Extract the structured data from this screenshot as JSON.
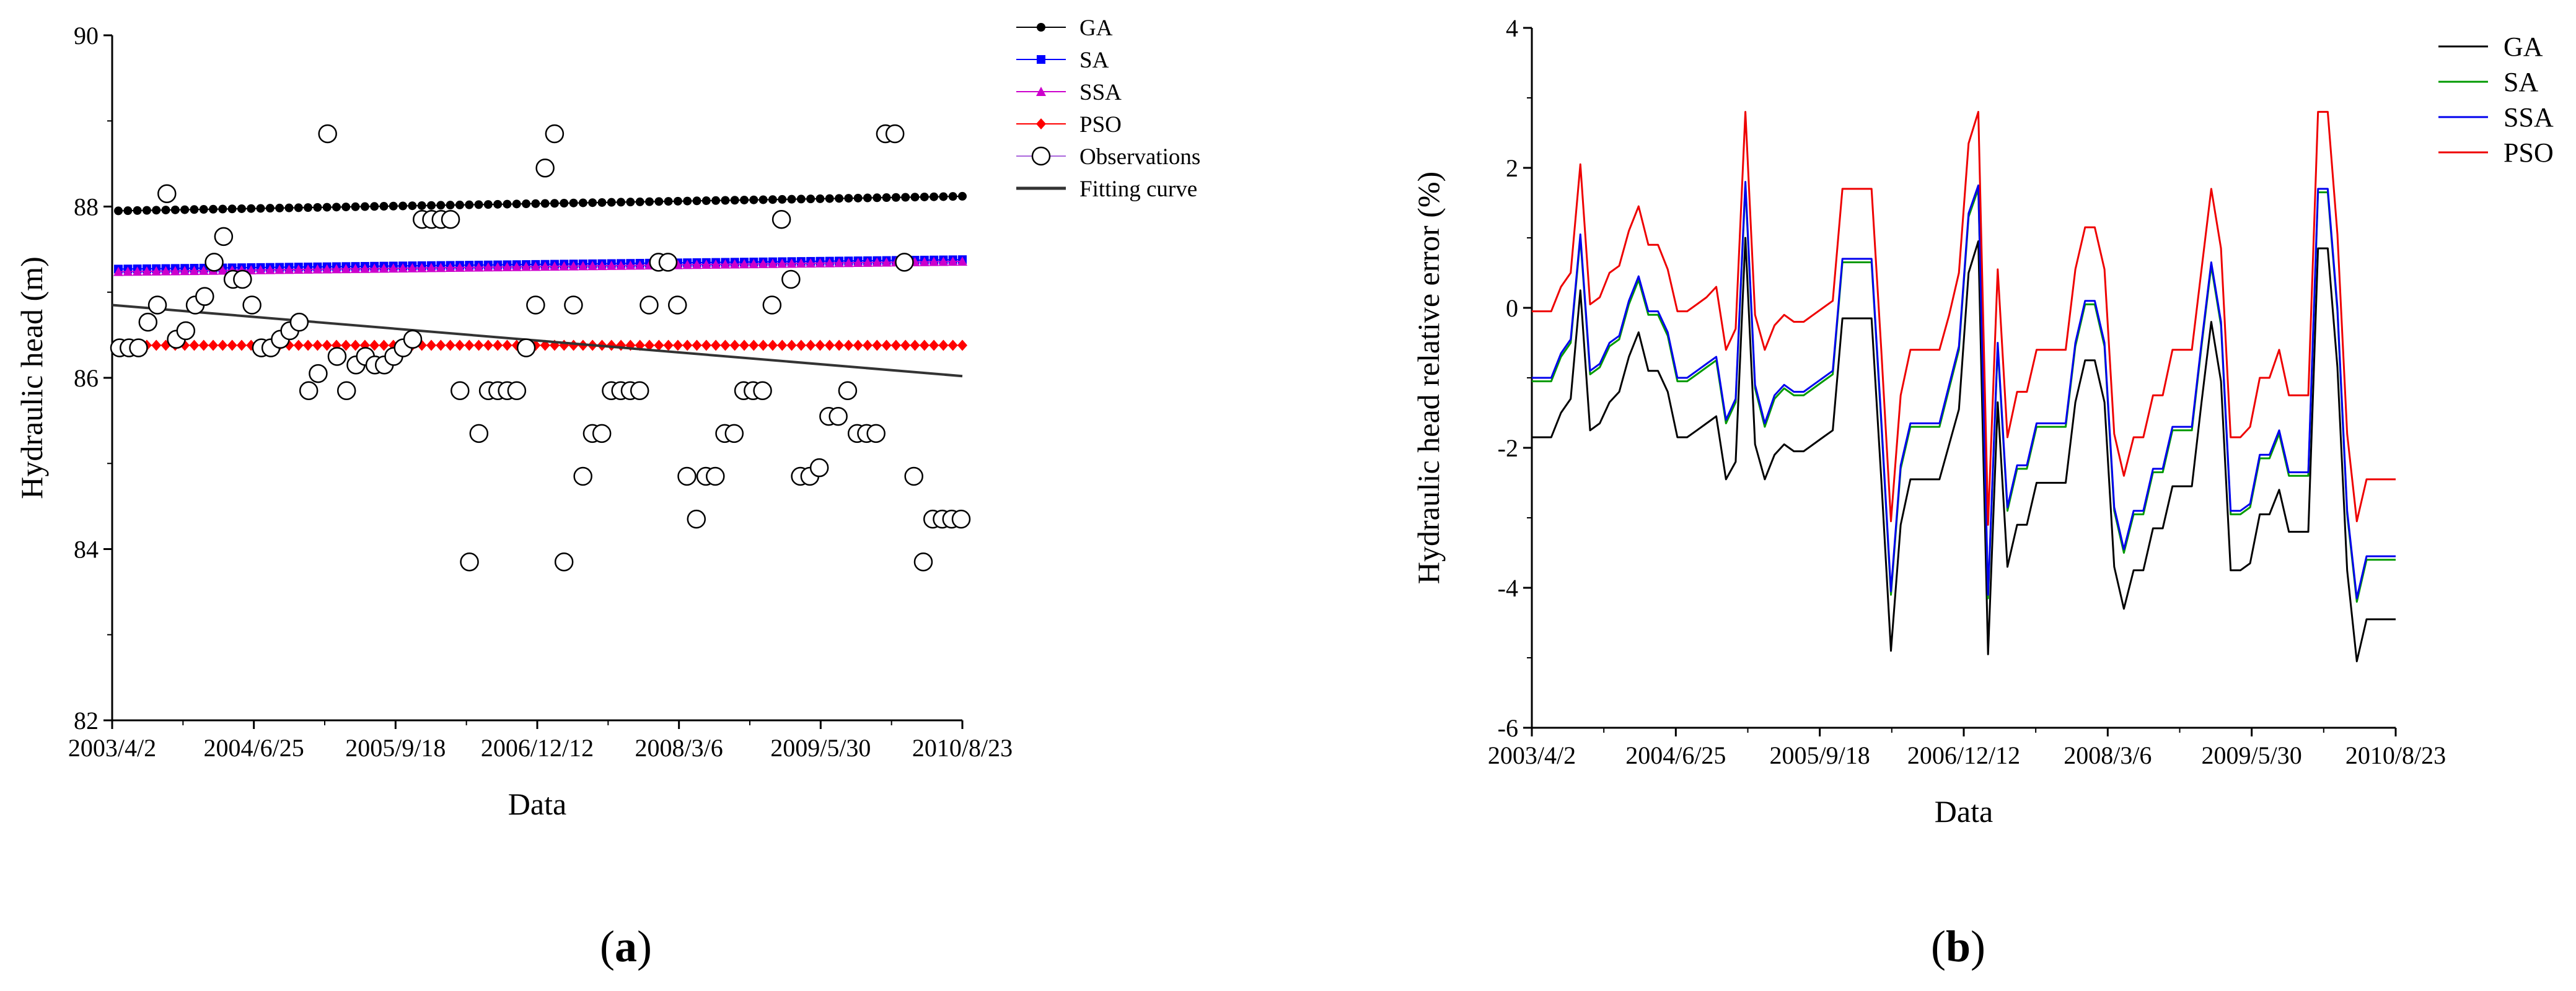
{
  "chart_data": [
    {
      "type": "scatter",
      "panel_label": {
        "open": "(",
        "letter": "a",
        "close": ")"
      },
      "xlabel": "Data",
      "ylabel": "Hydraulic head (m)",
      "ylim": [
        82,
        90
      ],
      "yticks": [
        82,
        84,
        86,
        88,
        90
      ],
      "xticks": [
        "2003/4/2",
        "2004/6/25",
        "2005/9/18",
        "2006/12/12",
        "2008/3/6",
        "2009/5/30",
        "2010/8/23"
      ],
      "n_points": 90,
      "legend": [
        "GA",
        "SA",
        "SSA",
        "PSO",
        "Observations",
        "Fitting curve"
      ],
      "series": [
        {
          "name": "GA",
          "color": "#000000",
          "marker": "circle",
          "start": 87.95,
          "end": 88.12
        },
        {
          "name": "SA",
          "color": "#0000ff",
          "marker": "square",
          "start": 87.27,
          "end": 87.38
        },
        {
          "name": "SSA",
          "color": "#cc00cc",
          "marker": "triangle",
          "start": 87.24,
          "end": 87.36
        },
        {
          "name": "PSO",
          "color": "#ff0000",
          "marker": "diamond",
          "start": 86.38,
          "end": 86.38
        },
        {
          "name": "Fitting curve",
          "color": "#333333",
          "marker": "none",
          "start": 86.85,
          "end": 86.02
        }
      ],
      "observations": [
        86.35,
        86.35,
        86.35,
        86.65,
        86.85,
        88.15,
        86.45,
        86.55,
        86.85,
        86.95,
        87.35,
        87.65,
        87.15,
        87.15,
        86.85,
        86.35,
        86.35,
        86.45,
        86.55,
        86.65,
        85.85,
        86.05,
        88.85,
        86.25,
        85.85,
        86.15,
        86.25,
        86.15,
        86.15,
        86.25,
        86.35,
        86.45,
        87.85,
        87.85,
        87.85,
        87.85,
        85.85,
        83.85,
        85.35,
        85.85,
        85.85,
        85.85,
        85.85,
        86.35,
        86.85,
        88.45,
        88.85,
        83.85,
        86.85,
        84.85,
        85.35,
        85.35,
        85.85,
        85.85,
        85.85,
        85.85,
        86.85,
        87.35,
        87.35,
        86.85,
        84.85,
        84.35,
        84.85,
        84.85,
        85.35,
        85.35,
        85.85,
        85.85,
        85.85,
        86.85,
        87.85,
        87.15,
        84.85,
        84.85,
        84.95,
        85.55,
        85.55,
        85.85,
        85.35,
        85.35,
        85.35,
        88.85,
        88.85,
        87.35,
        84.85,
        83.85,
        84.35,
        84.35,
        84.35,
        84.35
      ]
    },
    {
      "type": "line",
      "panel_label": {
        "open": "(",
        "letter": "b",
        "close": ")"
      },
      "xlabel": "Data",
      "ylabel": "Hydraulic head relative error (%)",
      "ylim": [
        -6,
        4
      ],
      "yticks": [
        -6,
        -4,
        -2,
        0,
        2,
        4
      ],
      "xticks": [
        "2003/4/2",
        "2004/6/25",
        "2005/9/18",
        "2006/12/12",
        "2008/3/6",
        "2009/5/30",
        "2010/8/23"
      ],
      "legend": [
        "GA",
        "SA",
        "SSA",
        "PSO"
      ],
      "series": [
        {
          "name": "GA",
          "color": "#000000",
          "values": [
            -1.85,
            -1.85,
            -1.85,
            -1.5,
            -1.3,
            0.25,
            -1.75,
            -1.65,
            -1.35,
            -1.2,
            -0.7,
            -0.35,
            -0.9,
            -0.9,
            -1.2,
            -1.85,
            -1.85,
            -1.75,
            -1.65,
            -1.55,
            -2.45,
            -2.2,
            1.0,
            -1.95,
            -2.45,
            -2.1,
            -1.95,
            -2.05,
            -2.05,
            -1.95,
            -1.85,
            -1.75,
            -0.15,
            -0.15,
            -0.15,
            -0.15,
            -2.45,
            -4.9,
            -3.1,
            -2.45,
            -2.45,
            -2.45,
            -2.45,
            -1.95,
            -1.45,
            0.5,
            0.95,
            -4.95,
            -1.35,
            -3.7,
            -3.1,
            -3.1,
            -2.5,
            -2.5,
            -2.5,
            -2.5,
            -1.35,
            -0.75,
            -0.75,
            -1.35,
            -3.7,
            -4.3,
            -3.75,
            -3.75,
            -3.15,
            -3.15,
            -2.55,
            -2.55,
            -2.55,
            -1.35,
            -0.2,
            -1.05,
            -3.75,
            -3.75,
            -3.65,
            -2.95,
            -2.95,
            -2.6,
            -3.2,
            -3.2,
            -3.2,
            0.85,
            0.85,
            -0.85,
            -3.75,
            -5.05,
            -4.45,
            -4.45,
            -4.45,
            -4.45
          ]
        },
        {
          "name": "SA",
          "color": "#009900",
          "values": [
            -1.05,
            -1.05,
            -1.05,
            -0.7,
            -0.5,
            1.0,
            -0.95,
            -0.85,
            -0.55,
            -0.45,
            0.05,
            0.4,
            -0.1,
            -0.1,
            -0.4,
            -1.05,
            -1.05,
            -0.95,
            -0.85,
            -0.75,
            -1.65,
            -1.35,
            1.75,
            -1.15,
            -1.7,
            -1.3,
            -1.15,
            -1.25,
            -1.25,
            -1.15,
            -1.05,
            -0.95,
            0.65,
            0.65,
            0.65,
            0.65,
            -1.65,
            -4.1,
            -2.3,
            -1.7,
            -1.7,
            -1.7,
            -1.7,
            -1.15,
            -0.6,
            1.3,
            1.7,
            -4.15,
            -0.55,
            -2.9,
            -2.3,
            -2.3,
            -1.7,
            -1.7,
            -1.7,
            -1.7,
            -0.55,
            0.05,
            0.05,
            -0.55,
            -2.9,
            -3.5,
            -2.95,
            -2.95,
            -2.35,
            -2.35,
            -1.75,
            -1.75,
            -1.75,
            -0.55,
            0.6,
            -0.25,
            -2.95,
            -2.95,
            -2.85,
            -2.15,
            -2.15,
            -1.8,
            -2.4,
            -2.4,
            -2.4,
            1.65,
            1.65,
            -0.05,
            -2.95,
            -4.2,
            -3.6,
            -3.6,
            -3.6,
            -3.6
          ]
        },
        {
          "name": "SSA",
          "color": "#0000ee",
          "values": [
            -1.0,
            -1.0,
            -1.0,
            -0.65,
            -0.45,
            1.05,
            -0.9,
            -0.8,
            -0.5,
            -0.4,
            0.1,
            0.45,
            -0.05,
            -0.05,
            -0.35,
            -1.0,
            -1.0,
            -0.9,
            -0.8,
            -0.7,
            -1.6,
            -1.3,
            1.8,
            -1.1,
            -1.65,
            -1.25,
            -1.1,
            -1.2,
            -1.2,
            -1.1,
            -1.0,
            -0.9,
            0.7,
            0.7,
            0.7,
            0.7,
            -1.6,
            -4.05,
            -2.25,
            -1.65,
            -1.65,
            -1.65,
            -1.65,
            -1.1,
            -0.55,
            1.35,
            1.75,
            -4.1,
            -0.5,
            -2.85,
            -2.25,
            -2.25,
            -1.65,
            -1.65,
            -1.65,
            -1.65,
            -0.5,
            0.1,
            0.1,
            -0.5,
            -2.85,
            -3.45,
            -2.9,
            -2.9,
            -2.3,
            -2.3,
            -1.7,
            -1.7,
            -1.7,
            -0.5,
            0.65,
            -0.2,
            -2.9,
            -2.9,
            -2.8,
            -2.1,
            -2.1,
            -1.75,
            -2.35,
            -2.35,
            -2.35,
            1.7,
            1.7,
            0.0,
            -2.9,
            -4.15,
            -3.55,
            -3.55,
            -3.55,
            -3.55
          ]
        },
        {
          "name": "PSO",
          "color": "#ee0000",
          "values": [
            -0.05,
            -0.05,
            -0.05,
            0.3,
            0.5,
            2.05,
            0.05,
            0.15,
            0.5,
            0.6,
            1.1,
            1.45,
            0.9,
            0.9,
            0.55,
            -0.05,
            -0.05,
            0.05,
            0.15,
            0.3,
            -0.6,
            -0.3,
            2.8,
            -0.1,
            -0.6,
            -0.25,
            -0.1,
            -0.2,
            -0.2,
            -0.1,
            0.0,
            0.1,
            1.7,
            1.7,
            1.7,
            1.7,
            -0.6,
            -3.05,
            -1.25,
            -0.6,
            -0.6,
            -0.6,
            -0.6,
            -0.1,
            0.5,
            2.35,
            2.8,
            -3.1,
            0.55,
            -1.85,
            -1.2,
            -1.2,
            -0.6,
            -0.6,
            -0.6,
            -0.6,
            0.55,
            1.15,
            1.15,
            0.55,
            -1.8,
            -2.4,
            -1.85,
            -1.85,
            -1.25,
            -1.25,
            -0.6,
            -0.6,
            -0.6,
            0.55,
            1.7,
            0.85,
            -1.85,
            -1.85,
            -1.7,
            -1.0,
            -1.0,
            -0.6,
            -1.25,
            -1.25,
            -1.25,
            2.8,
            2.8,
            1.05,
            -1.8,
            -3.05,
            -2.45,
            -2.45,
            -2.45,
            -2.45
          ]
        }
      ]
    }
  ]
}
